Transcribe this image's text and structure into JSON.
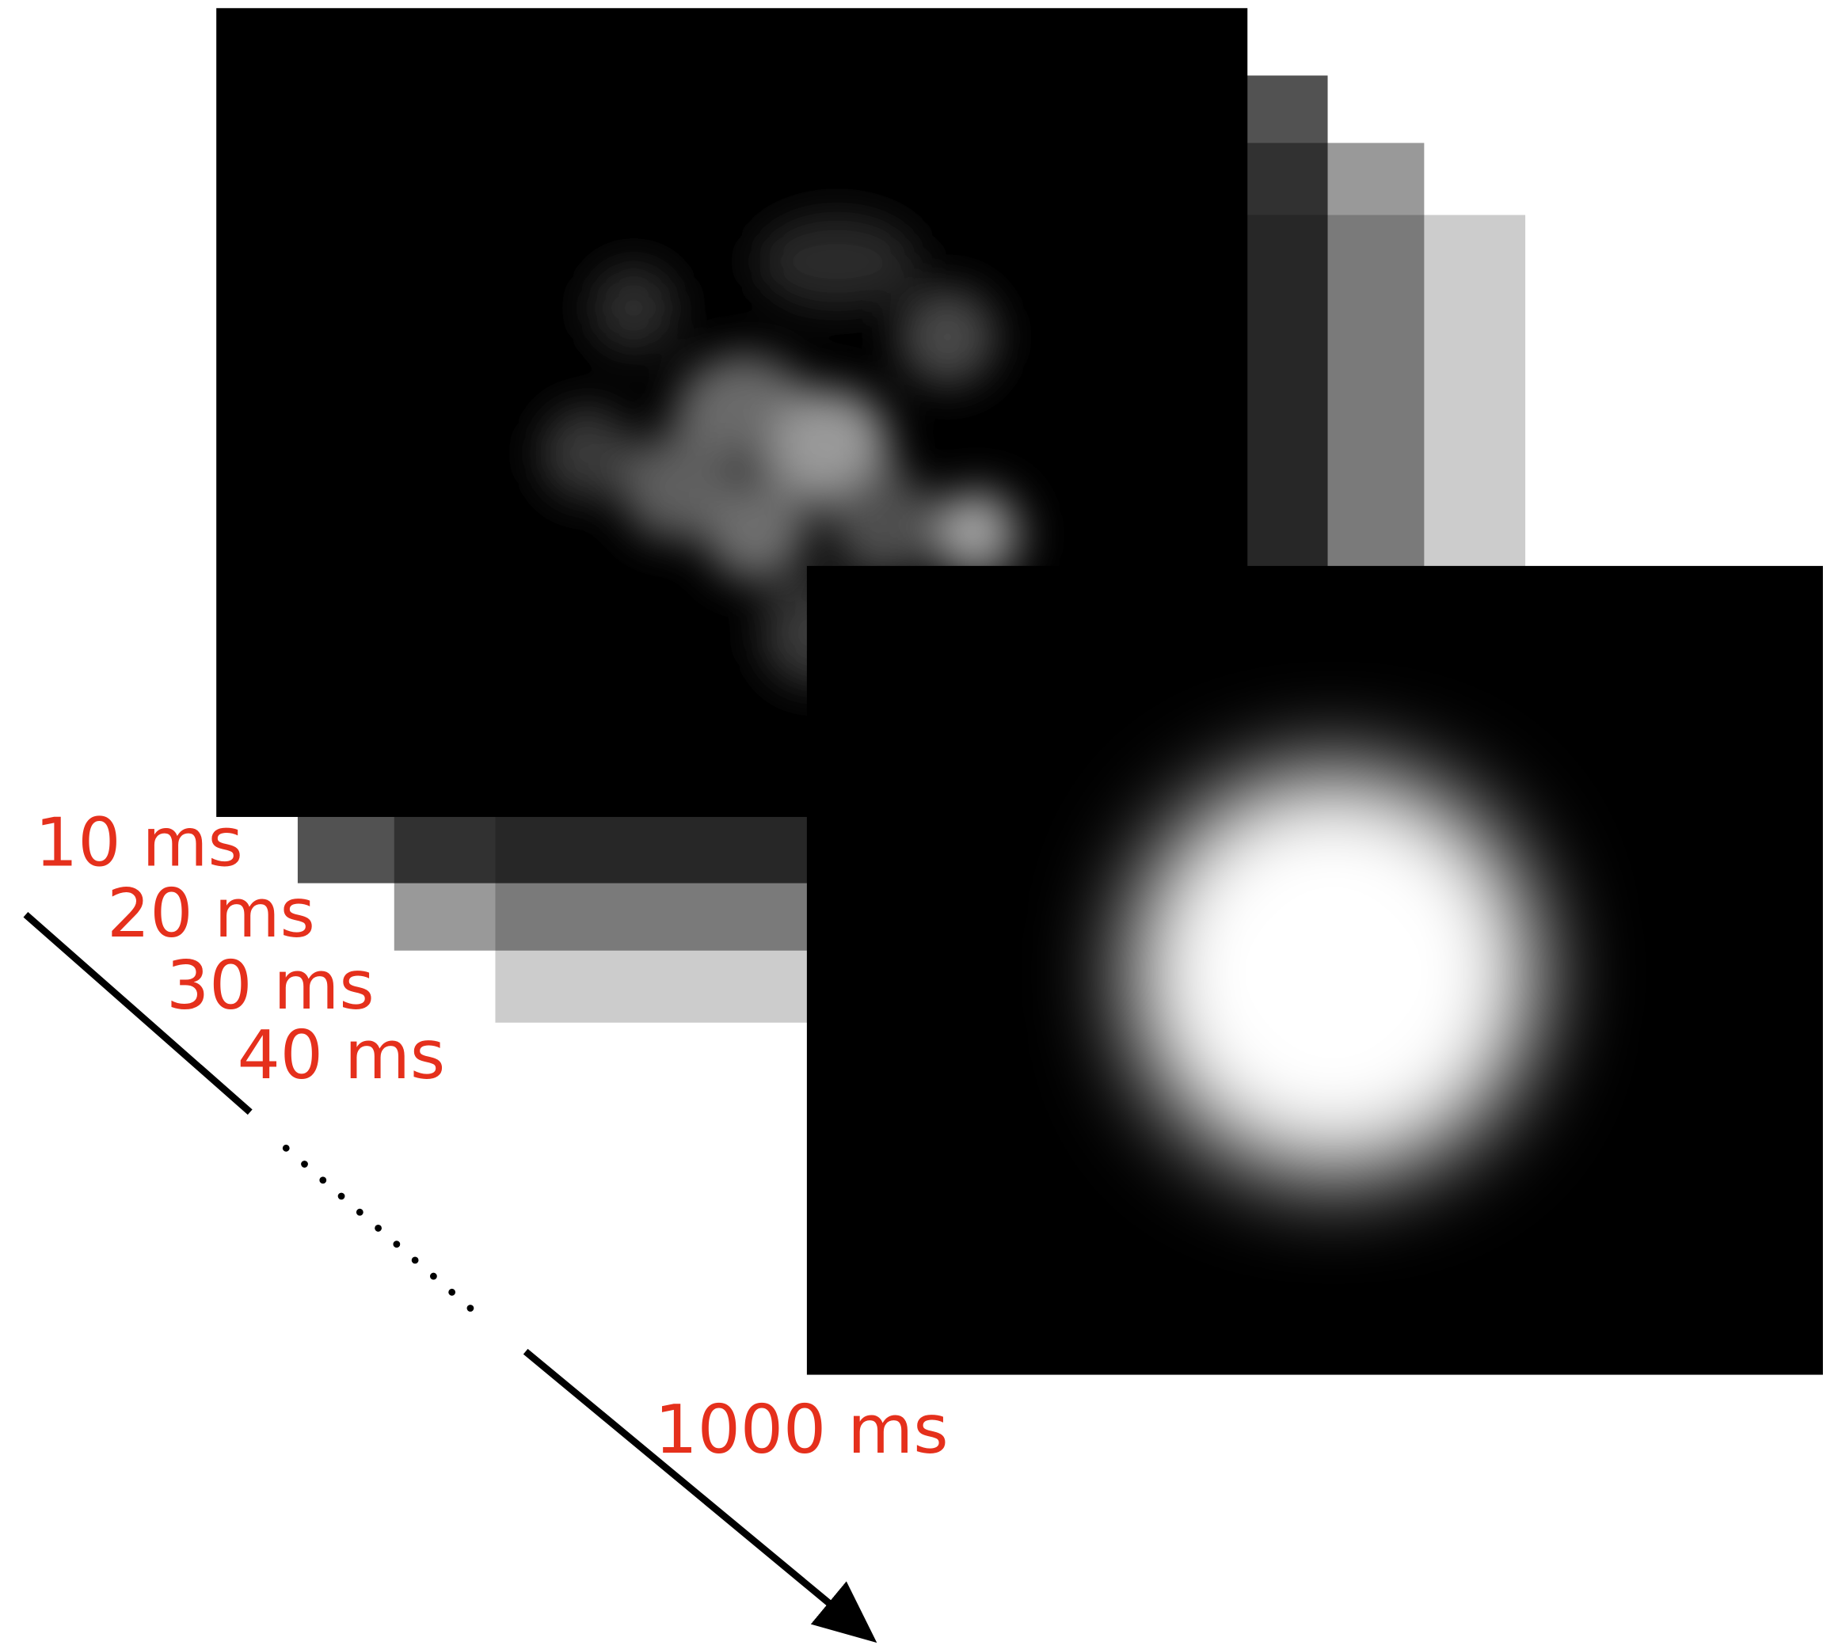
{
  "frame_labels": [
    "10 ms",
    "20 ms",
    "30 ms",
    "40 ms"
  ],
  "final_label": "1000 ms"
}
